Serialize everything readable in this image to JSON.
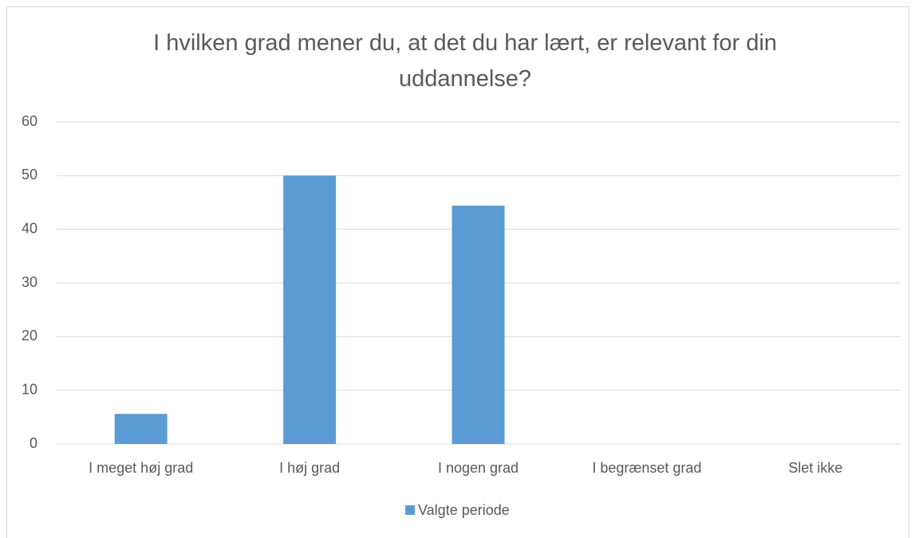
{
  "chart_data": {
    "type": "bar",
    "title": "I hvilken grad mener du, at det du har lært, er relevant for din uddannelse?",
    "categories": [
      "I meget høj grad",
      "I høj grad",
      "I nogen grad",
      "I begrænset grad",
      "Slet ikke"
    ],
    "series": [
      {
        "name": "Valgte periode",
        "color": "#5b9bd5",
        "values": [
          5.6,
          50,
          44.4,
          0,
          0
        ]
      }
    ],
    "ylim": [
      0,
      60
    ],
    "yticks": [
      0,
      10,
      20,
      30,
      40,
      50,
      60
    ],
    "grid": true,
    "legend": "bottom"
  }
}
